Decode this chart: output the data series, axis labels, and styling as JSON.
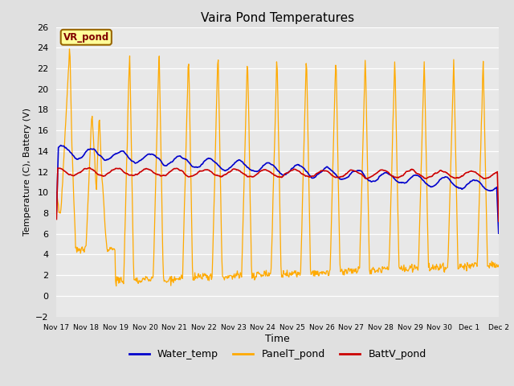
{
  "title": "Vaira Pond Temperatures",
  "xlabel": "Time",
  "ylabel": "Temperature (C), Battery (V)",
  "ylim": [
    -2,
    26
  ],
  "yticks": [
    -2,
    0,
    2,
    4,
    6,
    8,
    10,
    12,
    14,
    16,
    18,
    20,
    22,
    24,
    26
  ],
  "background_color": "#e0e0e0",
  "plot_bg_color": "#e8e8e8",
  "water_color": "#0000cc",
  "panel_color": "#ffaa00",
  "batt_color": "#cc0000",
  "annotation_text": "VR_pond",
  "annotation_bg": "#ffff99",
  "annotation_border": "#996600",
  "x_tick_labels": [
    "Nov 17",
    "Nov 18",
    "Nov 19",
    "Nov 20",
    "Nov 21",
    "Nov 22",
    "Nov 23",
    "Nov 24",
    "Nov 25",
    "Nov 26",
    "Nov 27",
    "Nov 28",
    "Nov 29",
    "Nov 30",
    "Dec 1",
    "Dec 2"
  ],
  "num_points": 720
}
